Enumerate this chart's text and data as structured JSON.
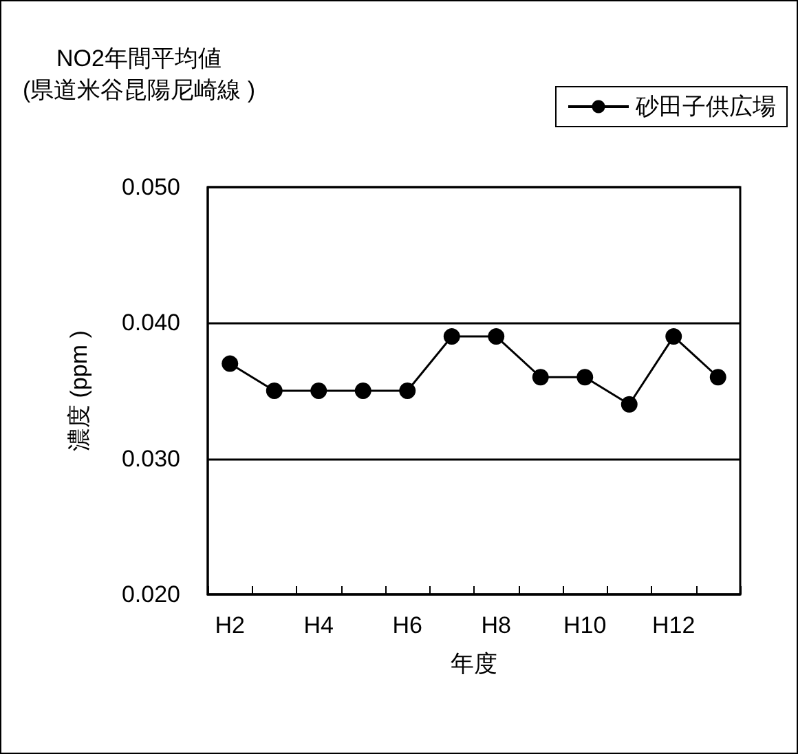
{
  "chart_data": {
    "type": "line",
    "title": "NO2年間平均値",
    "subtitle": "(県道米谷昆陽尼崎線 )",
    "xlabel": "年度",
    "ylabel": "濃度 (ppm )",
    "categories": [
      "H2",
      null,
      "H4",
      null,
      "H6",
      null,
      "H8",
      null,
      "H10",
      null,
      "H12",
      null
    ],
    "series": [
      {
        "name": "砂田子供広場",
        "color": "#000000",
        "values": [
          0.037,
          0.035,
          0.035,
          0.035,
          0.035,
          0.039,
          0.039,
          0.036,
          0.036,
          0.034,
          0.039,
          0.036
        ]
      }
    ],
    "ylim": [
      0.02,
      0.05
    ],
    "yticks": [
      {
        "value": 0.02,
        "label": "0.020"
      },
      {
        "value": 0.03,
        "label": "0.030"
      },
      {
        "value": 0.04,
        "label": "0.040"
      },
      {
        "value": 0.05,
        "label": "0.050"
      }
    ],
    "grid": "y",
    "legend": "top right",
    "marker": "circle",
    "line_style": "solid"
  }
}
